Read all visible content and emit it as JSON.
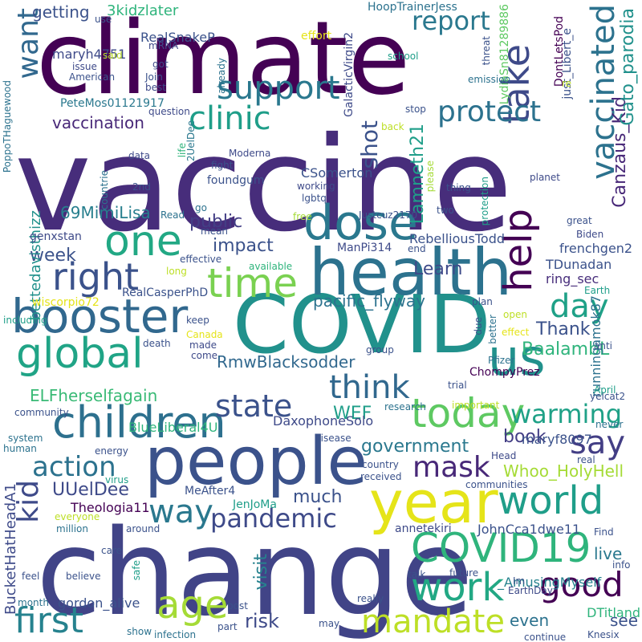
{
  "words": [
    {
      "text": "vaccine",
      "color": "#472d7b"
    },
    {
      "text": "climate",
      "color": "#440154"
    },
    {
      "text": "change",
      "color": "#414487"
    },
    {
      "text": "COVID",
      "color": "#21918c"
    },
    {
      "text": "people",
      "color": "#3b528b"
    },
    {
      "text": "health",
      "color": "#2c728e"
    },
    {
      "text": "year",
      "color": "#e5e419"
    },
    {
      "text": "children",
      "color": "#2d708e"
    },
    {
      "text": "booster",
      "color": "#31688e"
    },
    {
      "text": "dose",
      "color": "#2a788e"
    },
    {
      "text": "one",
      "color": "#22a884"
    },
    {
      "text": "time",
      "color": "#7ad151"
    },
    {
      "text": "help",
      "color": "#440154"
    },
    {
      "text": "us",
      "color": "#21918c"
    },
    {
      "text": "global",
      "color": "#20a486"
    },
    {
      "text": "today",
      "color": "#5ec962"
    },
    {
      "text": "COVID19",
      "color": "#2fb47c"
    },
    {
      "text": "world",
      "color": "#1f9e89"
    },
    {
      "text": "work",
      "color": "#22a884"
    },
    {
      "text": "mandate",
      "color": "#bddf26"
    },
    {
      "text": "age",
      "color": "#a5db36"
    },
    {
      "text": "first",
      "color": "#26828e"
    },
    {
      "text": "good",
      "color": "#440154"
    },
    {
      "text": "right",
      "color": "#3b528b"
    },
    {
      "text": "support",
      "color": "#2a788e"
    },
    {
      "text": "clinic",
      "color": "#1f9e89"
    },
    {
      "text": "take",
      "color": "#3e4a89"
    },
    {
      "text": "vaccinated",
      "color": "#2c728e"
    },
    {
      "text": "day",
      "color": "#1fa187"
    },
    {
      "text": "think",
      "color": "#31688e"
    },
    {
      "text": "say",
      "color": "#433e85"
    },
    {
      "text": "way",
      "color": "#2a788e"
    },
    {
      "text": "state",
      "color": "#3b528b"
    },
    {
      "text": "mask",
      "color": "#482878"
    },
    {
      "text": "pandemic",
      "color": "#3e4a89"
    },
    {
      "text": "protect",
      "color": "#2c728e"
    },
    {
      "text": "action",
      "color": "#2c728e"
    },
    {
      "text": "warming",
      "color": "#1fa187"
    },
    {
      "text": "kid",
      "color": "#3e4a89"
    },
    {
      "text": "report",
      "color": "#2a788e"
    },
    {
      "text": "want",
      "color": "#31688e"
    },
    {
      "text": "shot",
      "color": "#3b528b"
    },
    {
      "text": "Lamneth21",
      "color": "#1f9e89"
    },
    {
      "text": "Canzaus_Kid",
      "color": "#482878"
    },
    {
      "text": "Gato_parodia",
      "color": "#21918c"
    },
    {
      "text": "69MimiLisa",
      "color": "#277f8e"
    },
    {
      "text": "public",
      "color": "#433e85"
    },
    {
      "text": "impact",
      "color": "#3b528b"
    },
    {
      "text": "Learn",
      "color": "#3e4a89"
    },
    {
      "text": "pacific_flyway",
      "color": "#2c728e"
    },
    {
      "text": "Thank",
      "color": "#3b528b"
    },
    {
      "text": "BaalambL",
      "color": "#2fb47c"
    },
    {
      "text": "RmwBlacksodder",
      "color": "#31688e"
    },
    {
      "text": "ELFherselfagain",
      "color": "#3aba76"
    },
    {
      "text": "WEF",
      "color": "#1f9e89"
    },
    {
      "text": "book",
      "color": "#433e85"
    },
    {
      "text": "government",
      "color": "#2a788e"
    },
    {
      "text": "UUelDee",
      "color": "#3e4a89"
    },
    {
      "text": "Whoo_HolyHell",
      "color": "#a5db36"
    },
    {
      "text": "much",
      "color": "#3b528b"
    },
    {
      "text": "visit",
      "color": "#26828e"
    },
    {
      "text": "risk",
      "color": "#3e4a89"
    },
    {
      "text": "see",
      "color": "#3b528b"
    },
    {
      "text": "even",
      "color": "#2c728e"
    },
    {
      "text": "live",
      "color": "#2a788e"
    },
    {
      "text": "week",
      "color": "#3b528b"
    },
    {
      "text": "vaccination",
      "color": "#482878"
    },
    {
      "text": "getting",
      "color": "#3b528b"
    },
    {
      "text": "3kidzlater",
      "color": "#2fb47c"
    },
    {
      "text": "bettedavisthizz",
      "color": "#21918c"
    },
    {
      "text": "BucketHatHeadA1",
      "color": "#3e4a89"
    },
    {
      "text": "RealSnakeP",
      "color": "#3b528b"
    },
    {
      "text": "maryh4751",
      "color": "#3e4a89"
    },
    {
      "text": "PeteMos01121917",
      "color": "#2a788e"
    },
    {
      "text": "CSomerton",
      "color": "#3b528b"
    },
    {
      "text": "RebelliousTodd",
      "color": "#3b528b"
    },
    {
      "text": "genxstan",
      "color": "#3e4a89"
    },
    {
      "text": "ManPi314",
      "color": "#3e4a89"
    },
    {
      "text": "frenchgen2",
      "color": "#3b528b"
    },
    {
      "text": "TDunadan",
      "color": "#3b528b"
    },
    {
      "text": "ring_sec",
      "color": "#472d7b"
    },
    {
      "text": "runningamok87",
      "color": "#2c728e"
    },
    {
      "text": "DaxophoneSolo",
      "color": "#3e4a89"
    },
    {
      "text": "BlueLiberal4U",
      "color": "#2fb47c"
    },
    {
      "text": "maryf8097",
      "color": "#3b528b"
    },
    {
      "text": "Theologia11",
      "color": "#440154"
    },
    {
      "text": "MeAfter4",
      "color": "#3b528b"
    },
    {
      "text": "JenJoMa",
      "color": "#1f9e89"
    },
    {
      "text": "annetekiri",
      "color": "#3e4a89"
    },
    {
      "text": "JohnCca1dwe11",
      "color": "#3b528b"
    },
    {
      "text": "_AmusingMyself",
      "color": "#26828e"
    },
    {
      "text": "gordon_alive",
      "color": "#3b528b"
    },
    {
      "text": "DTitland",
      "color": "#2fb47c"
    },
    {
      "text": "HoopTrainerJess",
      "color": "#2c728e"
    },
    {
      "text": "LydiaSn81289886",
      "color": "#5ec962"
    },
    {
      "text": "DontLetsPod",
      "color": "#440154"
    },
    {
      "text": "just_Libert_e",
      "color": "#3b528b"
    },
    {
      "text": "GalacticVirgin2",
      "color": "#3e4a89"
    },
    {
      "text": "PoppoTHaguewood",
      "color": "#2c728e"
    },
    {
      "text": "2UelDee",
      "color": "#2a788e"
    },
    {
      "text": "Moderna",
      "color": "#3e4a89"
    },
    {
      "text": "foundgum",
      "color": "#3b528b"
    },
    {
      "text": "Justcuz2170",
      "color": "#3b528b"
    },
    {
      "text": "RealCasperPhD",
      "color": "#3b528b"
    },
    {
      "text": "wiscorpio72",
      "color": "#e5e419"
    },
    {
      "text": "ChompyPrez",
      "color": "#440154"
    },
    {
      "text": "yelcat2",
      "color": "#3b528b"
    },
    {
      "text": "EarthDay",
      "color": "#3e4a89"
    },
    {
      "text": "Knesix",
      "color": "#3b528b"
    },
    {
      "text": "effort",
      "color": "#e5e419"
    },
    {
      "text": "school",
      "color": "#1f9e89"
    },
    {
      "text": "threat",
      "color": "#3b528b"
    },
    {
      "text": "emission",
      "color": "#2c728e"
    },
    {
      "text": "use",
      "color": "#3b528b"
    },
    {
      "text": "said",
      "color": "#bddf26"
    },
    {
      "text": "mRNA",
      "color": "#3e4a89"
    },
    {
      "text": "issue",
      "color": "#3e4a89"
    },
    {
      "text": "got",
      "color": "#3e4a89"
    },
    {
      "text": "American",
      "color": "#3b528b"
    },
    {
      "text": "Join",
      "color": "#3b528b"
    },
    {
      "text": "best",
      "color": "#3e4a89"
    },
    {
      "text": "question",
      "color": "#3e4a89"
    },
    {
      "text": "already",
      "color": "#2c728e"
    },
    {
      "text": "re",
      "color": "#bddf26"
    },
    {
      "text": "stop",
      "color": "#3b528b"
    },
    {
      "text": "back",
      "color": "#bddf26"
    },
    {
      "text": "please",
      "color": "#a5db36"
    },
    {
      "text": "thing",
      "color": "#3b528b"
    },
    {
      "text": "planet",
      "color": "#3e4a89"
    },
    {
      "text": "data",
      "color": "#3e4a89"
    },
    {
      "text": "life",
      "color": "#2fb47c"
    },
    {
      "text": "fight",
      "color": "#3b528b"
    },
    {
      "text": "2nd",
      "color": "#3b528b"
    },
    {
      "text": "countrie",
      "color": "#2c728e"
    },
    {
      "text": "working",
      "color": "#3e4a89"
    },
    {
      "text": "lgbtq",
      "color": "#3b528b"
    },
    {
      "text": "go",
      "color": "#2c728e"
    },
    {
      "text": "two",
      "color": "#3b528b"
    },
    {
      "text": "protection",
      "color": "#1f9e89"
    },
    {
      "text": "great",
      "color": "#3b528b"
    },
    {
      "text": "Biden",
      "color": "#3e4a89"
    },
    {
      "text": "free",
      "color": "#a5db36"
    },
    {
      "text": "mean",
      "color": "#3b528b"
    },
    {
      "text": "Read",
      "color": "#2c728e"
    },
    {
      "text": "end",
      "color": "#3b528b"
    },
    {
      "text": "available",
      "color": "#2fb47c"
    },
    {
      "text": "effective",
      "color": "#3b528b"
    },
    {
      "text": "long",
      "color": "#bddf26"
    },
    {
      "text": "Earth",
      "color": "#1f9e89"
    },
    {
      "text": "plan",
      "color": "#3b528b"
    },
    {
      "text": "open",
      "color": "#bddf26"
    },
    {
      "text": "due",
      "color": "#3b528b"
    },
    {
      "text": "effect",
      "color": "#e5e419"
    },
    {
      "text": "better",
      "color": "#2c728e"
    },
    {
      "text": "keep",
      "color": "#3b528b"
    },
    {
      "text": "Canada",
      "color": "#e5e419"
    },
    {
      "text": "including",
      "color": "#1f9e89"
    },
    {
      "text": "death",
      "color": "#3b528b"
    },
    {
      "text": "made",
      "color": "#3e4a89"
    },
    {
      "text": "come",
      "color": "#3e4a89"
    },
    {
      "text": "group",
      "color": "#3b528b"
    },
    {
      "text": "anti",
      "color": "#3b528b"
    },
    {
      "text": "Pfizer",
      "color": "#2c728e"
    },
    {
      "text": "trial",
      "color": "#3b528b"
    },
    {
      "text": "April",
      "color": "#1f9e89"
    },
    {
      "text": "important",
      "color": "#bddf26"
    },
    {
      "text": "research",
      "color": "#2c728e"
    },
    {
      "text": "community",
      "color": "#3b528b"
    },
    {
      "text": "never",
      "color": "#2c728e"
    },
    {
      "text": "system",
      "color": "#2c728e"
    },
    {
      "text": "disease",
      "color": "#3b528b"
    },
    {
      "text": "human",
      "color": "#2c728e"
    },
    {
      "text": "energy",
      "color": "#3b528b"
    },
    {
      "text": "country",
      "color": "#3b528b"
    },
    {
      "text": "virus",
      "color": "#1f9e89"
    },
    {
      "text": "received",
      "color": "#3b528b"
    },
    {
      "text": "communities",
      "color": "#3b528b"
    },
    {
      "text": "Head",
      "color": "#3e4a89"
    },
    {
      "text": "real",
      "color": "#3b528b"
    },
    {
      "text": "everyone",
      "color": "#bddf26"
    },
    {
      "text": "million",
      "color": "#2c728e"
    },
    {
      "text": "around",
      "color": "#3b528b"
    },
    {
      "text": "Find",
      "color": "#3b528b"
    },
    {
      "text": "care",
      "color": "#3b528b"
    },
    {
      "text": "feel",
      "color": "#3b528b"
    },
    {
      "text": "believe",
      "color": "#3b528b"
    },
    {
      "text": "safe",
      "color": "#1f9e89"
    },
    {
      "text": "info",
      "color": "#3b528b"
    },
    {
      "text": "Im",
      "color": "#3b528b"
    },
    {
      "text": "talk",
      "color": "#3b528b"
    },
    {
      "text": "future",
      "color": "#3b528b"
    },
    {
      "text": "month",
      "color": "#2c728e"
    },
    {
      "text": "post",
      "color": "#3b528b"
    },
    {
      "text": "really",
      "color": "#3b528b"
    },
    {
      "text": "show",
      "color": "#2c728e"
    },
    {
      "text": "part",
      "color": "#3b528b"
    },
    {
      "text": "infection",
      "color": "#2c728e"
    },
    {
      "text": "may",
      "color": "#3b528b"
    },
    {
      "text": "continue",
      "color": "#3b528b"
    }
  ]
}
